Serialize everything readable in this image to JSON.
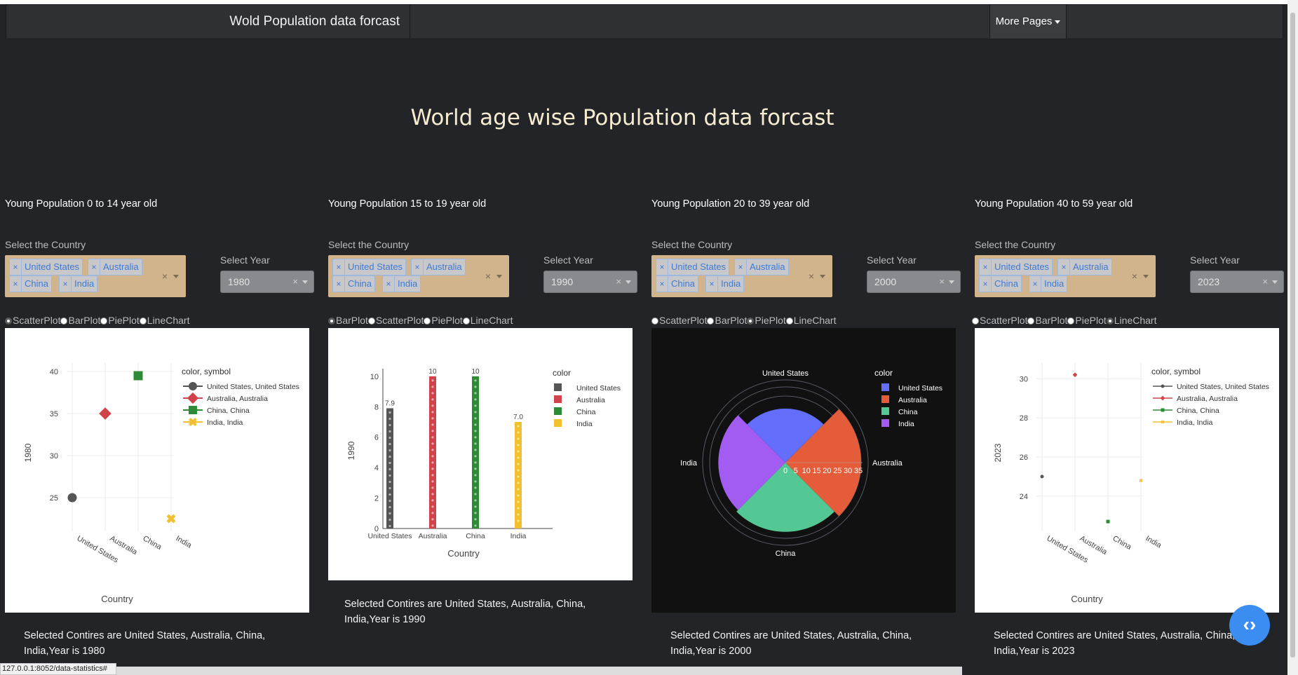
{
  "navbar": {
    "brand": "Wold Population data forcast",
    "more_label": "More Pages"
  },
  "page_title": "World age wise Population data forcast",
  "labels": {
    "country": "Select the Country",
    "year": "Select Year"
  },
  "countries": [
    "United States",
    "Australia",
    "China",
    "India"
  ],
  "panels": [
    {
      "title": "Young Population 0 to 14 year old",
      "year": "1980",
      "radios": [
        "ScatterPlot",
        "BarPlot",
        "PiePlot",
        "LineChart"
      ],
      "selected_radio": "ScatterPlot",
      "description": "Selected Contires are United States, Australia, China, India,Year is 1980"
    },
    {
      "title": "Young Population 15 to 19 year old",
      "year": "1990",
      "radios": [
        "BarPlot",
        "ScatterPlot",
        "PiePlot",
        "LineChart"
      ],
      "selected_radio": "BarPlot",
      "description": "Selected Contires are United States, Australia, China, India,Year is 1990"
    },
    {
      "title": "Young Population 20 to 39 year old",
      "year": "2000",
      "radios": [
        "ScatterPlot",
        "BarPlot",
        "PiePlot",
        "LineChart"
      ],
      "selected_radio": "PiePlot",
      "description": "Selected Contires are United States, Australia, China, India,Year is 2000"
    },
    {
      "title": "Young Population 40 to 59 year old",
      "year": "2023",
      "radios": [
        "ScatterPlot",
        "BarPlot",
        "PiePlot",
        "LineChart"
      ],
      "selected_radio": "LineChart",
      "description": "Selected Contires are United States, Australia, China, India,Year is 2023"
    }
  ],
  "chart_data": [
    {
      "type": "scatter",
      "categories": [
        "United States",
        "Australia",
        "China",
        "India"
      ],
      "values": [
        25,
        35,
        39.5,
        22.5
      ],
      "ylabel": "1980",
      "xlabel": "Country",
      "ylim": [
        21,
        41
      ],
      "yticks": [
        25,
        30,
        35,
        40
      ],
      "legend_title": "color, symbol",
      "legend": [
        "United States, United States",
        "Australia, Australia",
        "China, China",
        "India, India"
      ],
      "colors": [
        "#555555",
        "#d1434b",
        "#2e8b35",
        "#f0c030"
      ]
    },
    {
      "type": "bar",
      "categories": [
        "United States",
        "Australia",
        "China",
        "India"
      ],
      "values": [
        7.9,
        10,
        10,
        7.0
      ],
      "labels": [
        "7.9",
        "10",
        "10",
        "7.0"
      ],
      "ylabel": "1990",
      "xlabel": "Country",
      "ylim": [
        0,
        10.5
      ],
      "yticks": [
        0,
        2,
        4,
        6,
        8,
        10
      ],
      "legend_title": "color",
      "legend": [
        "United States",
        "Australia",
        "China",
        "India"
      ],
      "colors": [
        "#555555",
        "#d1434b",
        "#2e8b35",
        "#f0c030"
      ]
    },
    {
      "type": "pie",
      "categories": [
        "United States",
        "Australia",
        "China",
        "India"
      ],
      "values": [
        25,
        35,
        32,
        31
      ],
      "radial_ticks": [
        0,
        5,
        10,
        15,
        20,
        25,
        30,
        35
      ],
      "legend_title": "color",
      "legend": [
        "United States",
        "Australia",
        "China",
        "India"
      ],
      "colors": [
        "#636efa",
        "#e45c3a",
        "#54c894",
        "#a25cf2"
      ]
    },
    {
      "type": "line",
      "categories": [
        "United States",
        "Australia",
        "China",
        "India"
      ],
      "values": [
        25,
        30.2,
        22.7,
        24.8
      ],
      "ylabel": "2023",
      "xlabel": "Country",
      "ylim": [
        22.2,
        30.8
      ],
      "yticks": [
        24,
        26,
        28,
        30
      ],
      "legend_title": "color, symbol",
      "legend": [
        "United States, United States",
        "Australia, Australia",
        "China, China",
        "India, India"
      ],
      "colors": [
        "#555555",
        "#d1434b",
        "#2e8b35",
        "#f0c030"
      ]
    }
  ],
  "status_url": "127.0.0.1:8052/data-statistics#"
}
